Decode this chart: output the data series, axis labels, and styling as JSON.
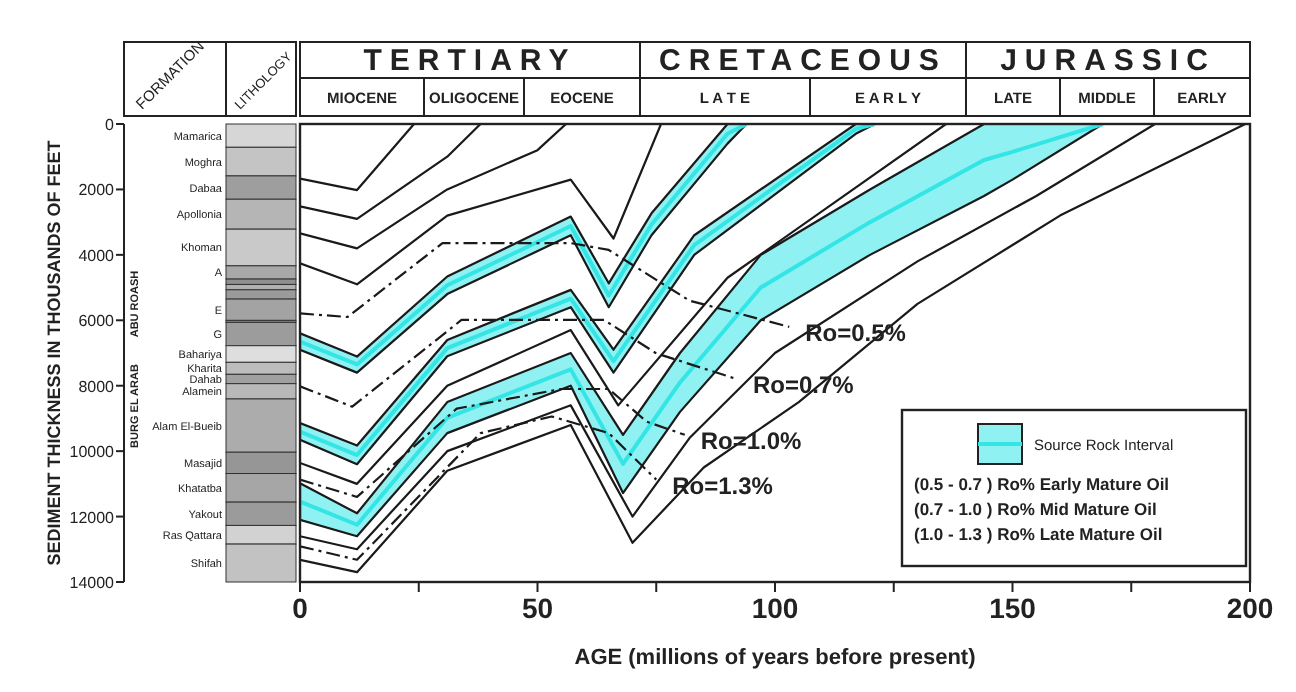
{
  "chart_data": [
    {
      "type": "bar",
      "stacked": true,
      "ylabel": "SEDIMENT THICKNESS IN THOUSANDS OF FEET",
      "ylim": [
        14000,
        0
      ],
      "yticks": [
        0,
        2000,
        4000,
        6000,
        8000,
        10000,
        12000,
        14000
      ],
      "categories": [
        null
      ],
      "series": [
        {
          "name": "Mamarica",
          "color": "#d6d6d6",
          "values": [
            712
          ]
        },
        {
          "name": "Moghra",
          "color": "#c4c4c4",
          "values": [
            875
          ]
        },
        {
          "name": "Dabaa",
          "color": "#9e9e9e",
          "values": [
            713
          ]
        },
        {
          "name": "Apollonia",
          "color": "#b5b5b5",
          "values": [
            915
          ]
        },
        {
          "name": "Khoman",
          "color": "#c9c9c9",
          "values": [
            1120
          ]
        },
        {
          "name": "A",
          "color": "#a8a8a8",
          "values": [
            405
          ]
        },
        {
          "color": "#8f8f8f",
          "values": [
            165
          ]
        },
        {
          "color": "#b0b0b0",
          "values": [
            162
          ]
        },
        {
          "color": "#9a9a9a",
          "values": [
            285
          ]
        },
        {
          "name": "E",
          "color": "#a3a3a3",
          "values": [
            651
          ]
        },
        {
          "color": "#8a8a8a",
          "values": [
            61
          ]
        },
        {
          "name": "G",
          "color": "#9c9c9c",
          "values": [
            713
          ]
        },
        {
          "name": "Bahariya",
          "color": "#dedede",
          "values": [
            508
          ]
        },
        {
          "name": "Kharita",
          "color": "#bcbcbc",
          "values": [
            367
          ]
        },
        {
          "name": "Dahab",
          "color": "#a0a0a0",
          "values": [
            285
          ]
        },
        {
          "name": "Alamein",
          "color": "#b8b8b8",
          "values": [
            468
          ]
        },
        {
          "name": "Alam El-Bueib",
          "color": "#acacac",
          "values": [
            1628
          ]
        },
        {
          "name": "Masajid",
          "color": "#969696",
          "values": [
            651
          ]
        },
        {
          "name": "Khatatba",
          "color": "#a6a6a6",
          "values": [
            875
          ]
        },
        {
          "name": "Yakout",
          "color": "#9b9b9b",
          "values": [
            712
          ]
        },
        {
          "name": "Ras Qattara",
          "color": "#d2d2d2",
          "values": [
            570
          ]
        },
        {
          "name": "Shifah",
          "color": "#c2c2c2",
          "values": [
            1159
          ]
        }
      ],
      "annotations": [
        "FORMATION",
        "LITHOLOGY",
        "ABU ROASH",
        "BURG EL ARAB"
      ]
    },
    {
      "type": "line",
      "xlabel": "AGE (millions of years before present)",
      "xlim": [
        0,
        200
      ],
      "ylim": [
        14000,
        0
      ],
      "tick_labels": "x",
      "xticks": [
        0,
        {
          "value": 25,
          "label": null
        },
        50,
        {
          "value": 75,
          "label": null
        },
        100,
        {
          "value": 125,
          "label": null
        },
        150,
        {
          "value": 175,
          "label": null
        },
        200
      ],
      "legend": "bottom right",
      "series": [
        {
          "color": "#1a1a1a",
          "x": [
            0,
            12,
            24
          ],
          "values": [
            1670,
            2020,
            0
          ]
        },
        {
          "color": "#1a1a1a",
          "x": [
            0,
            12,
            31,
            38
          ],
          "values": [
            2520,
            2900,
            1000,
            0
          ]
        },
        {
          "color": "#1a1a1a",
          "x": [
            0,
            12,
            31,
            50,
            56
          ],
          "values": [
            3340,
            3800,
            2000,
            800,
            0
          ]
        },
        {
          "color": "#1a1a1a",
          "x": [
            0,
            12,
            31,
            57,
            66,
            76
          ],
          "values": [
            4260,
            4900,
            2800,
            1700,
            3500,
            0
          ]
        },
        {
          "name": "Source Rock Interval",
          "color": "#33e5e5",
          "x": [
            0,
            12,
            31,
            57,
            65,
            74,
            90,
            94
          ],
          "values": [
            6650,
            7350,
            4930,
            3120,
            5240,
            3070,
            300,
            0
          ],
          "lower": [
            6400,
            7110,
            4660,
            2830,
            4870,
            2730,
            0,
            0
          ],
          "upper": [
            6900,
            7600,
            5200,
            3400,
            5600,
            3400,
            600,
            0
          ]
        },
        {
          "color": "#33e5e5",
          "x": [
            0,
            12,
            31,
            57,
            66,
            83,
            117,
            121
          ],
          "values": [
            9400,
            10120,
            6850,
            5340,
            7250,
            3700,
            150,
            0
          ],
          "lower": [
            9140,
            9830,
            6600,
            5070,
            6900,
            3400,
            0,
            0
          ],
          "upper": [
            9650,
            10400,
            7100,
            5600,
            7600,
            4000,
            300,
            0
          ]
        },
        {
          "color": "#1a1a1a",
          "x": [
            0,
            12,
            31,
            57,
            67,
            90,
            136
          ],
          "values": [
            10360,
            11000,
            8000,
            6300,
            8600,
            4700,
            0
          ]
        },
        {
          "color": "#33e5e5",
          "x": [
            0,
            12,
            31,
            57,
            68,
            80,
            97,
            120,
            144,
            150,
            169
          ],
          "values": [
            11540,
            12250,
            8980,
            7500,
            10390,
            7900,
            5000,
            3000,
            1100,
            850,
            0
          ],
          "lower": [
            10980,
            11900,
            8500,
            7000,
            9500,
            7000,
            4000,
            2000,
            0,
            0,
            0
          ],
          "upper": [
            12100,
            12600,
            9450,
            8000,
            11280,
            8800,
            6000,
            4000,
            2200,
            1700,
            0
          ]
        },
        {
          "color": "#1a1a1a",
          "x": [
            0,
            12,
            31,
            57,
            70,
            82,
            100,
            130,
            155,
            180
          ],
          "values": [
            12600,
            13000,
            10000,
            8600,
            12000,
            9600,
            7000,
            4200,
            2200,
            0
          ]
        },
        {
          "color": "#1a1a1a",
          "x": [
            0,
            12,
            31,
            57,
            70,
            85,
            105,
            130,
            160,
            199
          ],
          "values": [
            13320,
            13700,
            10600,
            9200,
            12800,
            10500,
            8500,
            5500,
            2800,
            0
          ]
        },
        {
          "name": "Ro=0.5%",
          "line_style": "dashed",
          "color": "#1a1a1a",
          "x": [
            0,
            10,
            30,
            57,
            65,
            82,
            103
          ],
          "values": [
            5790,
            5900,
            3640,
            3640,
            3850,
            5400,
            6200
          ]
        },
        {
          "name": "Ro=0.7%",
          "line_style": "dashed",
          "color": "#1a1a1a",
          "x": [
            0,
            11,
            34,
            64,
            75,
            92
          ],
          "values": [
            8020,
            8640,
            5990,
            5990,
            7010,
            7800
          ]
        },
        {
          "name": "Ro=1.0%",
          "line_style": "dashed",
          "color": "#1a1a1a",
          "x": [
            0,
            12,
            33,
            55,
            65,
            73,
            81
          ],
          "values": [
            10870,
            11400,
            8700,
            8100,
            8100,
            9100,
            9500
          ]
        },
        {
          "name": "Ro=1.3%",
          "line_style": "dashed",
          "color": "#1a1a1a",
          "x": [
            0,
            12,
            38,
            53,
            65,
            75
          ],
          "values": [
            12910,
            13320,
            9450,
            8940,
            9450,
            10870
          ]
        }
      ],
      "annotations": [
        "TERTIARY",
        "CRETACEOUS",
        "JURASSIC",
        "MIOCENE",
        "OLIGOCENE",
        "EOCENE",
        "L A T E",
        "E A R L Y",
        "LATE",
        "MIDDLE",
        "EARLY",
        "(0.5 - 0.7 ) Ro% Early Mature Oil",
        "(0.7 - 1.0 ) Ro% Mid Mature Oil",
        "(1.0 - 1.3 ) Ro% Late Mature Oil"
      ]
    }
  ]
}
